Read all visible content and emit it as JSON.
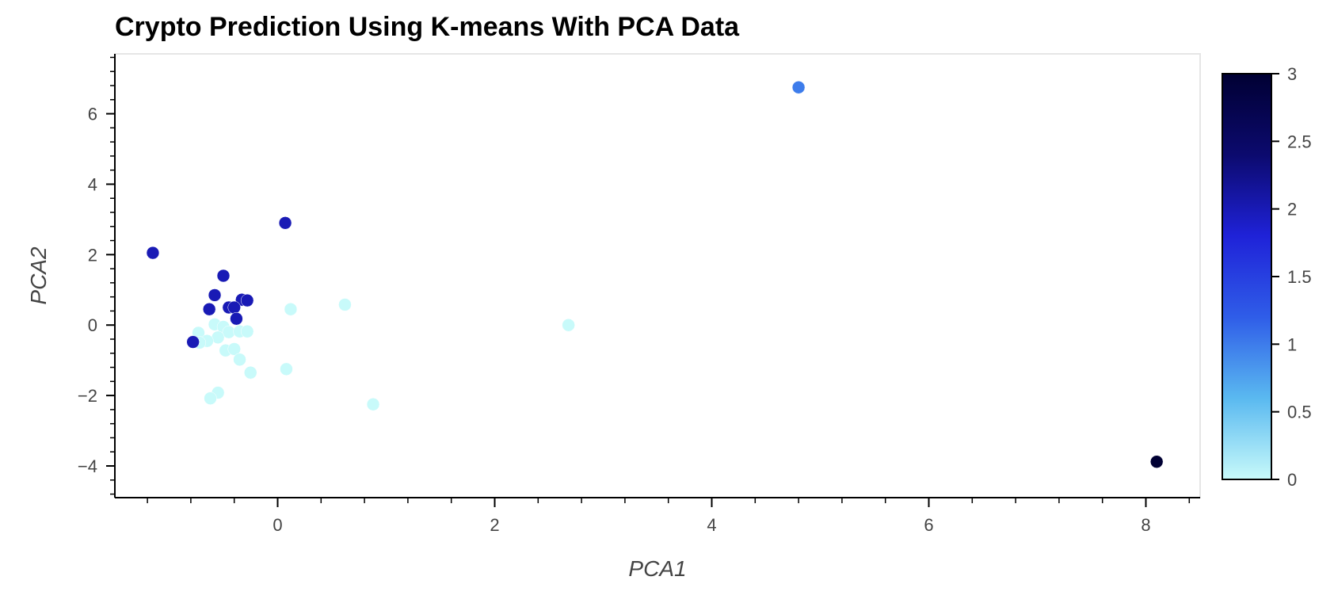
{
  "chart_data": {
    "type": "scatter",
    "title": "Crypto Prediction Using K-means With PCA Data",
    "xlabel": "PCA1",
    "ylabel": "PCA2",
    "xlim": [
      -1.5,
      8.5
    ],
    "ylim": [
      -4.9,
      7.7
    ],
    "x_ticks": [
      0,
      2,
      4,
      6,
      8
    ],
    "y_ticks": [
      -4,
      -2,
      0,
      2,
      4,
      6
    ],
    "x_tick_labels": [
      "0",
      "2",
      "4",
      "6",
      "8"
    ],
    "y_tick_labels": [
      "−4",
      "−2",
      "0",
      "2",
      "4",
      "6"
    ],
    "grid": false,
    "colorbar": {
      "min": 0,
      "max": 3,
      "ticks": [
        0,
        0.5,
        1,
        1.5,
        2,
        2.5,
        3
      ],
      "tick_labels": [
        "0",
        "0.5",
        "1",
        "1.5",
        "2",
        "2.5",
        "3"
      ],
      "colors": [
        "#c8fafa",
        "#5ab9f0",
        "#2f5de8",
        "#1f22d8",
        "#0c0a6e",
        "#000033"
      ]
    },
    "points": [
      {
        "x": 4.8,
        "y": 6.75,
        "class": 1
      },
      {
        "x": 8.1,
        "y": -3.88,
        "class": 3
      },
      {
        "x": 0.07,
        "y": 2.9,
        "class": 2
      },
      {
        "x": -1.15,
        "y": 2.05,
        "class": 2
      },
      {
        "x": -0.5,
        "y": 1.4,
        "class": 2
      },
      {
        "x": -0.58,
        "y": 0.85,
        "class": 2
      },
      {
        "x": -0.33,
        "y": 0.72,
        "class": 2
      },
      {
        "x": -0.28,
        "y": 0.7,
        "class": 2
      },
      {
        "x": -0.45,
        "y": 0.5,
        "class": 2
      },
      {
        "x": -0.4,
        "y": 0.5,
        "class": 2
      },
      {
        "x": -0.63,
        "y": 0.45,
        "class": 2
      },
      {
        "x": -0.38,
        "y": 0.18,
        "class": 2
      },
      {
        "x": -0.78,
        "y": -0.48,
        "class": 2
      },
      {
        "x": 0.62,
        "y": 0.58,
        "class": 0
      },
      {
        "x": 0.12,
        "y": 0.45,
        "class": 0
      },
      {
        "x": 2.68,
        "y": 0.0,
        "class": 0
      },
      {
        "x": -0.58,
        "y": 0.02,
        "class": 0
      },
      {
        "x": -0.5,
        "y": -0.05,
        "class": 0
      },
      {
        "x": -0.73,
        "y": -0.22,
        "class": 0
      },
      {
        "x": -0.45,
        "y": -0.2,
        "class": 0
      },
      {
        "x": -0.35,
        "y": -0.18,
        "class": 0
      },
      {
        "x": -0.28,
        "y": -0.18,
        "class": 0
      },
      {
        "x": -0.55,
        "y": -0.35,
        "class": 0
      },
      {
        "x": -0.65,
        "y": -0.45,
        "class": 0
      },
      {
        "x": -0.72,
        "y": -0.5,
        "class": 0
      },
      {
        "x": -0.48,
        "y": -0.72,
        "class": 0
      },
      {
        "x": -0.4,
        "y": -0.68,
        "class": 0
      },
      {
        "x": -0.35,
        "y": -0.98,
        "class": 0
      },
      {
        "x": 0.08,
        "y": -1.25,
        "class": 0
      },
      {
        "x": -0.25,
        "y": -1.35,
        "class": 0
      },
      {
        "x": -0.55,
        "y": -1.92,
        "class": 0
      },
      {
        "x": -0.62,
        "y": -2.08,
        "class": 0
      },
      {
        "x": 0.88,
        "y": -2.25,
        "class": 0
      }
    ]
  }
}
